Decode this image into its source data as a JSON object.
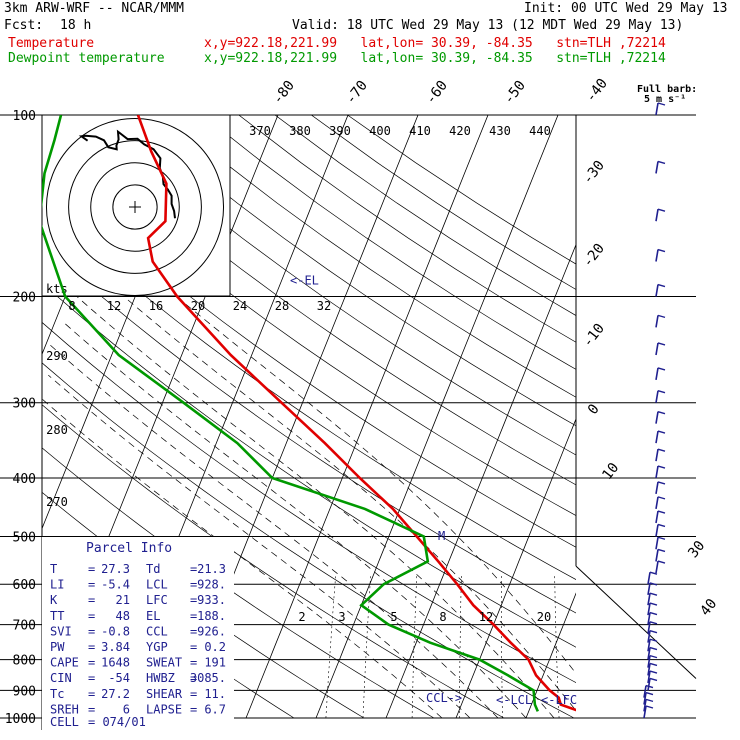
{
  "header": {
    "model": "3km ARW-WRF -- NCAR/MMM",
    "init": "Init: 00 UTC Wed 29 May 13",
    "fcst_label": "Fcst:",
    "fcst_value": "18 h",
    "valid": "Valid: 18 UTC Wed 29 May 13 (12 MDT Wed 29 May 13)",
    "temp_label": "Temperature",
    "dew_label": "Dewpoint temperature",
    "loc_text": "x,y=922.18,221.99   lat,lon= 30.39, -84.35   stn=TLH ,72214"
  },
  "colors": {
    "temperature": "#e00000",
    "dewpoint": "#009900",
    "wind": "#202090",
    "text": "#000000"
  },
  "chart_data": {
    "type": "line",
    "ylabel": "",
    "y_scale": "log-pressure",
    "ylim_hpa": [
      1000,
      100
    ],
    "pressure_levels": [
      1000,
      900,
      800,
      700,
      600,
      500,
      400,
      300,
      200,
      100
    ],
    "temp_axis_labels": [
      -40,
      -30,
      -20,
      -10,
      0,
      10,
      20,
      30,
      40
    ],
    "theta_labels": [
      370,
      380,
      390,
      400,
      410,
      420,
      430,
      440,
      290,
      280,
      270
    ],
    "mixing_ratio_labels": [
      2,
      3,
      5,
      8,
      12,
      20
    ],
    "inset_ring_labels": [
      8,
      12,
      16,
      20,
      24,
      28,
      32
    ],
    "inset_unit": "kts",
    "el_marker": "<-EL",
    "lcl_marker": "<-LCL",
    "lfc_marker": "<-LFC",
    "ccl_marker": "CCL->",
    "wind_header": "Full barb:",
    "wind_unit": "5 m s⁻¹",
    "temperature": [
      [
        1000,
        30.0
      ],
      [
        975,
        27.3
      ],
      [
        950,
        24.2
      ],
      [
        925,
        23.5
      ],
      [
        900,
        21.8
      ],
      [
        850,
        19.0
      ],
      [
        800,
        17.0
      ],
      [
        750,
        13.5
      ],
      [
        700,
        10.0
      ],
      [
        650,
        6.0
      ],
      [
        600,
        2.5
      ],
      [
        550,
        -1.5
      ],
      [
        500,
        -6.0
      ],
      [
        450,
        -11.0
      ],
      [
        400,
        -17.5
      ],
      [
        350,
        -24.5
      ],
      [
        300,
        -33.0
      ],
      [
        250,
        -43.0
      ],
      [
        200,
        -54.0
      ],
      [
        175,
        -59.5
      ],
      [
        160,
        -61.5
      ],
      [
        150,
        -60.0
      ],
      [
        130,
        -62.0
      ],
      [
        115,
        -66.0
      ],
      [
        100,
        -70.0
      ]
    ],
    "dewpoint": [
      [
        975,
        21.3
      ],
      [
        950,
        20.5
      ],
      [
        925,
        20.0
      ],
      [
        900,
        19.5
      ],
      [
        850,
        15.0
      ],
      [
        800,
        10.0
      ],
      [
        750,
        2.0
      ],
      [
        700,
        -5.0
      ],
      [
        650,
        -10.0
      ],
      [
        600,
        -8.0
      ],
      [
        550,
        -3.0
      ],
      [
        500,
        -5.0
      ],
      [
        450,
        -15.0
      ],
      [
        400,
        -30.0
      ],
      [
        350,
        -37.0
      ],
      [
        300,
        -47.0
      ],
      [
        250,
        -59.0
      ],
      [
        200,
        -70.0
      ],
      [
        150,
        -78.0
      ],
      [
        125,
        -80.0
      ],
      [
        110,
        -80.5
      ],
      [
        100,
        -81.0
      ]
    ],
    "hodograph": [
      [
        12.9,
        -3.6
      ],
      [
        12.6,
        -1.3
      ],
      [
        11.8,
        1.0
      ],
      [
        11.8,
        3.6
      ],
      [
        10.6,
        5.6
      ],
      [
        9.2,
        7.4
      ],
      [
        9.0,
        9.7
      ],
      [
        8.0,
        12.6
      ],
      [
        8.2,
        15.7
      ],
      [
        6.0,
        18.6
      ],
      [
        3.0,
        20.2
      ],
      [
        0.8,
        22.0
      ],
      [
        -2.4,
        21.9
      ],
      [
        -4.7,
        23.7
      ],
      [
        -5.5,
        24.3
      ],
      [
        -5.3,
        21.8
      ],
      [
        -6.0,
        19.8
      ],
      [
        -5.9,
        18.6
      ],
      [
        -8.6,
        19.3
      ],
      [
        -10.0,
        21.5
      ],
      [
        -12.6,
        22.7
      ],
      [
        -15.9,
        23.0
      ],
      [
        -17.3,
        22.8
      ],
      [
        -15.3,
        21.4
      ]
    ]
  },
  "parcel": {
    "title": "Parcel Info",
    "rows": [
      {
        "k1": "T",
        "v1": "27.3",
        "k2": "Td",
        "v2": "21.3"
      },
      {
        "k1": "LI",
        "v1": "-5.4",
        "k2": "LCL",
        "v2": "928."
      },
      {
        "k1": "K",
        "v1": "21",
        "k2": "LFC",
        "v2": "933."
      },
      {
        "k1": "TT",
        "v1": "48",
        "k2": "EL",
        "v2": "188."
      },
      {
        "k1": "SVI",
        "v1": "-0.8",
        "k2": "CCL",
        "v2": "926."
      },
      {
        "k1": "PW",
        "v1": "3.84",
        "k2": "YGP",
        "v2": "0.2"
      },
      {
        "k1": "CAPE",
        "v1": "1648",
        "k2": "SWEAT",
        "v2": "191"
      },
      {
        "k1": "CIN",
        "v1": "-54",
        "k2": "HWBZ",
        "v2": "3085."
      },
      {
        "k1": "Tc",
        "v1": "27.2",
        "k2": "SHEAR",
        "v2": "11."
      },
      {
        "k1": "SREH",
        "v1": "6",
        "k2": "LAPSE",
        "v2": "6.7"
      }
    ],
    "cell_key": "CELL",
    "cell_value": "074/01"
  }
}
